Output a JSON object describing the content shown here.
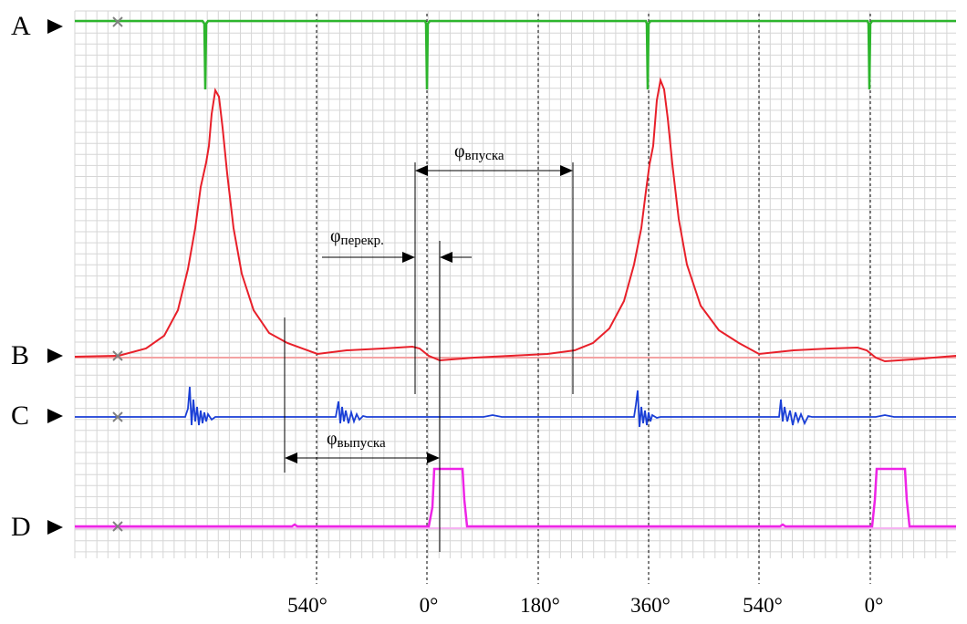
{
  "channels": [
    {
      "id": "A",
      "label": "A",
      "color": "#2db52d"
    },
    {
      "id": "B",
      "label": "B",
      "color": "#e8202a"
    },
    {
      "id": "C",
      "label": "C",
      "color": "#1a3fd6"
    },
    {
      "id": "D",
      "label": "D",
      "color": "#ee24e6"
    }
  ],
  "phase_ticks": [
    "540°",
    "0°",
    "180°",
    "360°",
    "540°",
    "0°"
  ],
  "annotations": {
    "intake": {
      "symbol": "φ",
      "sub": "впуска"
    },
    "overlap": {
      "symbol": "φ",
      "sub": "перекр."
    },
    "exhaust": {
      "symbol": "φ",
      "sub": "выпуска"
    }
  },
  "colors": {
    "grid": "#d6d6d6",
    "cursor": "#808080",
    "b_baseline": "#f3a3a3",
    "d_baseline": "#f6b3f2"
  }
}
